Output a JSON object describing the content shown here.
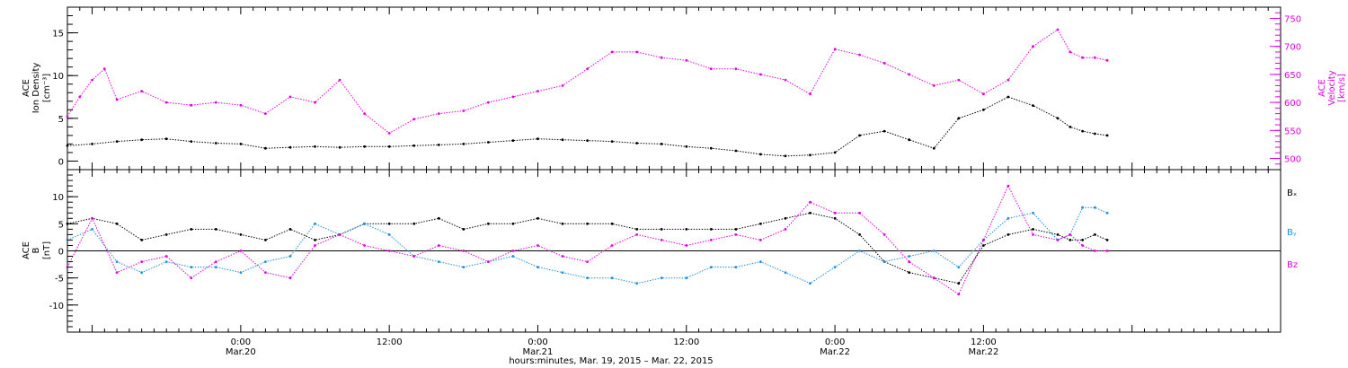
{
  "chart_data": [
    {
      "type": "scatter",
      "panel": "top",
      "ylabel_lines": [
        "ACE",
        "Ion Density",
        "[cm⁻³]"
      ],
      "ylabel_right_lines": [
        "ACE",
        "Velocity",
        "[km/s]"
      ],
      "ylim": [
        -1,
        18
      ],
      "yticks": [
        "0",
        "5",
        "10",
        "15"
      ],
      "y2lim": [
        480,
        770
      ],
      "y2ticks": [
        "500",
        "550",
        "600",
        "650",
        "700",
        "750"
      ],
      "series": [
        {
          "color": "#000000",
          "axis": "left",
          "x": [
            0,
            2,
            4,
            6,
            8,
            10,
            12,
            14,
            16,
            18,
            20,
            22,
            24,
            26,
            28,
            30,
            32,
            34,
            36,
            38,
            40,
            42,
            44,
            46,
            48,
            50,
            52,
            54,
            56,
            58,
            60,
            62,
            64,
            66,
            68,
            70,
            72,
            74,
            76,
            78,
            80,
            81,
            82,
            83,
            84
          ],
          "values": [
            1.8,
            2.0,
            2.3,
            2.5,
            2.6,
            2.3,
            2.1,
            2.0,
            1.5,
            1.6,
            1.7,
            1.6,
            1.7,
            1.7,
            1.8,
            1.9,
            2.0,
            2.2,
            2.4,
            2.6,
            2.5,
            2.4,
            2.3,
            2.1,
            2.0,
            1.7,
            1.5,
            1.2,
            0.8,
            0.6,
            0.7,
            1.0,
            3.0,
            3.5,
            2.5,
            1.5,
            5.0,
            6.0,
            7.5,
            6.5,
            5.0,
            4.0,
            3.5,
            3.2,
            3.0
          ]
        },
        {
          "color": "#e000e0",
          "axis": "right",
          "x": [
            0,
            1,
            2,
            3,
            4,
            6,
            8,
            10,
            12,
            14,
            16,
            18,
            20,
            22,
            24,
            26,
            28,
            30,
            32,
            34,
            36,
            38,
            40,
            42,
            44,
            46,
            48,
            50,
            52,
            54,
            56,
            58,
            60,
            62,
            64,
            66,
            68,
            70,
            72,
            74,
            76,
            78,
            80,
            81,
            82,
            83,
            84
          ],
          "values": [
            575,
            610,
            640,
            660,
            605,
            620,
            600,
            595,
            600,
            595,
            580,
            610,
            600,
            640,
            580,
            545,
            570,
            580,
            585,
            600,
            610,
            620,
            630,
            660,
            690,
            690,
            680,
            675,
            660,
            660,
            650,
            640,
            615,
            695,
            685,
            670,
            650,
            630,
            640,
            615,
            640,
            700,
            730,
            690,
            680,
            680,
            675
          ]
        }
      ]
    },
    {
      "type": "scatter",
      "panel": "bottom",
      "ylabel_lines": [
        "ACE",
        "B",
        "[nT]"
      ],
      "ylim": [
        -15,
        15
      ],
      "yticks": [
        "-10",
        "-5",
        "0",
        "5",
        "10"
      ],
      "legend": [
        "Bₓ",
        "Bᵧ",
        "Bz"
      ],
      "series": [
        {
          "name": "Bₓ",
          "color": "#000000",
          "x": [
            0,
            2,
            4,
            6,
            8,
            10,
            12,
            14,
            16,
            18,
            20,
            22,
            24,
            26,
            28,
            30,
            32,
            34,
            36,
            38,
            40,
            42,
            44,
            46,
            48,
            50,
            52,
            54,
            56,
            58,
            60,
            62,
            64,
            66,
            68,
            70,
            72,
            74,
            76,
            78,
            80,
            81,
            82,
            83,
            84
          ],
          "values": [
            5,
            6,
            5,
            2,
            3,
            4,
            4,
            3,
            2,
            4,
            2,
            3,
            5,
            5,
            5,
            6,
            4,
            5,
            5,
            6,
            5,
            5,
            5,
            4,
            4,
            4,
            4,
            4,
            5,
            6,
            7,
            6,
            3,
            -2,
            -4,
            -5,
            -6,
            1,
            3,
            4,
            3,
            2,
            2,
            3,
            2
          ]
        },
        {
          "name": "Bᵧ",
          "color": "#1e8fe0",
          "x": [
            0,
            2,
            4,
            6,
            8,
            10,
            12,
            14,
            16,
            18,
            20,
            22,
            24,
            26,
            28,
            30,
            32,
            34,
            36,
            38,
            40,
            42,
            44,
            46,
            48,
            50,
            52,
            54,
            56,
            58,
            60,
            62,
            64,
            66,
            68,
            70,
            72,
            74,
            76,
            78,
            80,
            81,
            82,
            83,
            84
          ],
          "values": [
            2,
            4,
            -2,
            -4,
            -2,
            -3,
            -3,
            -4,
            -2,
            -1,
            5,
            3,
            5,
            3,
            -1,
            -2,
            -3,
            -2,
            -1,
            -3,
            -4,
            -5,
            -5,
            -6,
            -5,
            -5,
            -3,
            -3,
            -2,
            -4,
            -6,
            -3,
            0,
            -2,
            -1,
            0,
            -3,
            2,
            6,
            7,
            2,
            3,
            8,
            8,
            7
          ]
        },
        {
          "name": "Bz",
          "color": "#e000e0",
          "x": [
            0,
            2,
            4,
            6,
            8,
            10,
            12,
            14,
            16,
            18,
            20,
            22,
            24,
            26,
            28,
            30,
            32,
            34,
            36,
            38,
            40,
            42,
            44,
            46,
            48,
            50,
            52,
            54,
            56,
            58,
            60,
            62,
            64,
            66,
            68,
            70,
            72,
            74,
            76,
            78,
            80,
            81,
            82,
            83,
            84
          ],
          "values": [
            -3,
            6,
            -4,
            -2,
            -1,
            -5,
            -2,
            0,
            -4,
            -5,
            1,
            3,
            1,
            0,
            -1,
            1,
            0,
            -2,
            0,
            1,
            -1,
            -2,
            1,
            3,
            2,
            1,
            2,
            3,
            2,
            4,
            9,
            7,
            7,
            3,
            -2,
            -5,
            -8,
            2,
            12,
            3,
            2,
            3,
            1,
            0,
            0
          ]
        }
      ]
    }
  ],
  "x_axis": {
    "tick_labels": [
      {
        "time": "0:00",
        "date": "Mar.20",
        "hour": 14
      },
      {
        "time": "12:00",
        "date": "",
        "hour": 26
      },
      {
        "time": "0:00",
        "date": "Mar.21",
        "hour": 38
      },
      {
        "time": "12:00",
        "date": "",
        "hour": 50
      },
      {
        "time": "0:00",
        "date": "Mar.22",
        "hour": 62
      },
      {
        "time": "12:00",
        "date": "Mar.22",
        "hour": 74
      }
    ],
    "xlim": [
      0,
      98
    ],
    "xlabel": "hours:minutes, Mar. 19, 2015 – Mar. 22, 2015"
  }
}
